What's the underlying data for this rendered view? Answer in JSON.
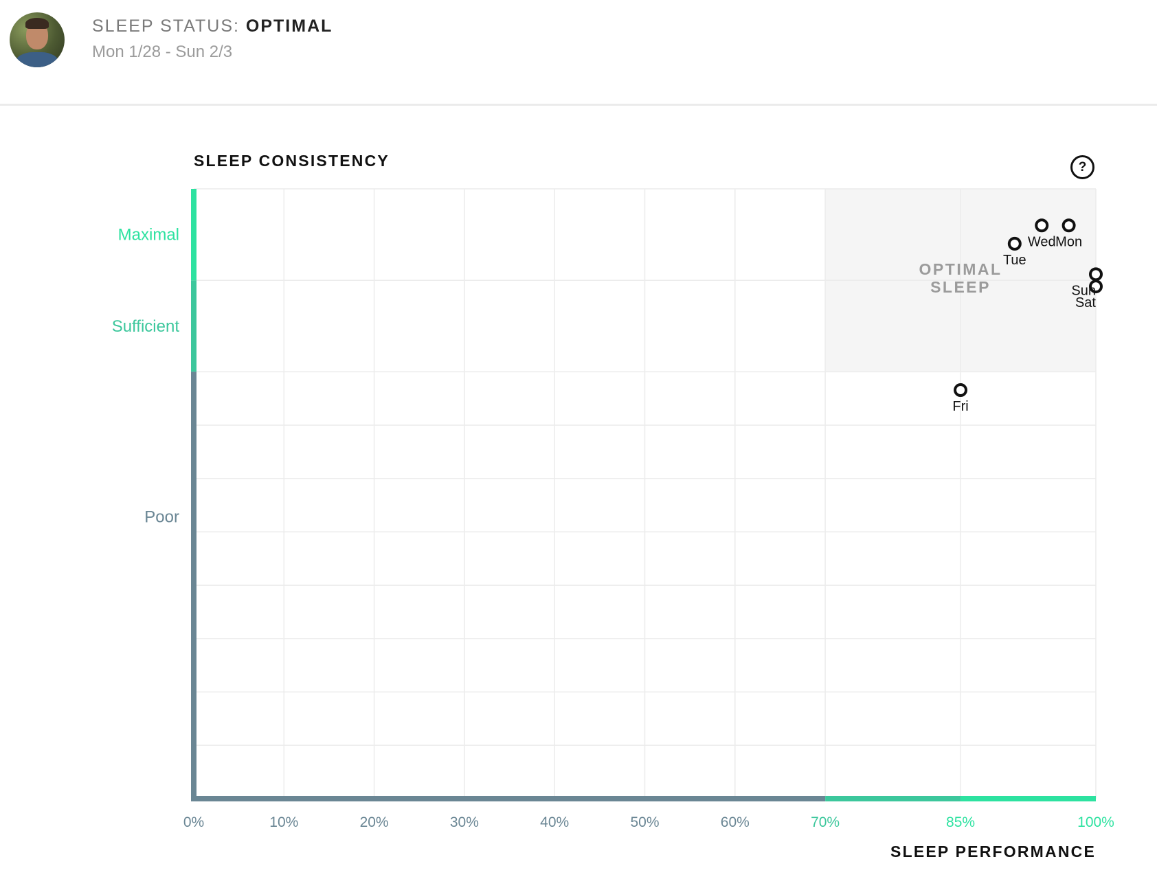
{
  "header": {
    "status_prefix": "SLEEP STATUS:",
    "status_value": "OPTIMAL",
    "date_range": "Mon 1/28 - Sun 2/3"
  },
  "help": {
    "label": "?"
  },
  "chart_data": {
    "type": "scatter",
    "title": "SLEEP CONSISTENCY",
    "xlabel": "SLEEP PERFORMANCE",
    "ylabel": "",
    "xlim": [
      0,
      100
    ],
    "x_ticks": [
      {
        "value": 0,
        "label": "0%"
      },
      {
        "value": 10,
        "label": "10%"
      },
      {
        "value": 20,
        "label": "20%"
      },
      {
        "value": 30,
        "label": "30%"
      },
      {
        "value": 40,
        "label": "40%"
      },
      {
        "value": 50,
        "label": "50%"
      },
      {
        "value": 60,
        "label": "60%"
      },
      {
        "value": 70,
        "label": "70%"
      },
      {
        "value": 85,
        "label": "85%"
      },
      {
        "value": 100,
        "label": "100%"
      }
    ],
    "ylim": [
      0,
      100
    ],
    "y_bands": [
      {
        "label": "Maximal",
        "from": 85,
        "to": 100
      },
      {
        "label": "Sufficient",
        "from": 70,
        "to": 85
      },
      {
        "label": "Poor",
        "from": 0,
        "to": 70
      }
    ],
    "optimal_zone": {
      "label_line1": "OPTIMAL",
      "label_line2": "SLEEP",
      "x_range": [
        70,
        100
      ],
      "y_range": [
        70,
        100
      ]
    },
    "points": [
      {
        "label": "Mon",
        "x": 97,
        "y": 94
      },
      {
        "label": "Tue",
        "x": 91,
        "y": 91
      },
      {
        "label": "Wed",
        "x": 94,
        "y": 94
      },
      {
        "label": "Fri",
        "x": 85,
        "y": 67
      },
      {
        "label": "Sat",
        "x": 100,
        "y": 84
      },
      {
        "label": "Sun",
        "x": 100,
        "y": 86
      }
    ],
    "grid": true,
    "colors": {
      "maximal": "#2de2a0",
      "sufficient": "#3cc79c",
      "poor": "#6a8694",
      "gridline": "#ececec",
      "optimal_zone": "#f5f5f5",
      "optimal_text": "#9b9b9b"
    }
  }
}
